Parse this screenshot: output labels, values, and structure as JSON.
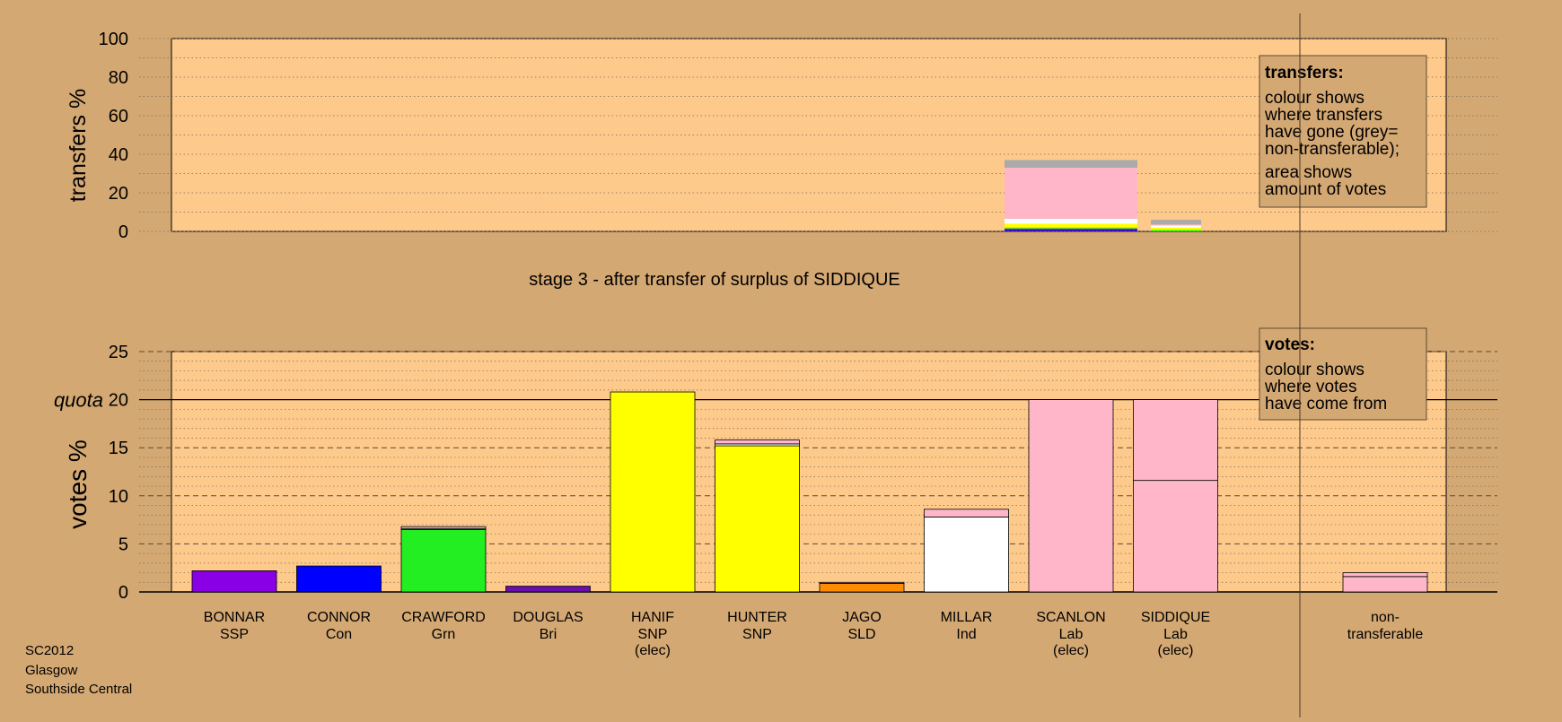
{
  "chart_data": [
    {
      "type": "bar",
      "subtype": "stacked",
      "ylabel": "transfers %",
      "ylim": [
        0,
        100
      ],
      "yticks": [
        0,
        20,
        40,
        60,
        80,
        100
      ],
      "columns": [
        {
          "label": "SCANLON",
          "relative_width": "wide",
          "segments": [
            {
              "source": "Bri",
              "color": "#6a0dad",
              "value": 0.5
            },
            {
              "source": "Con",
              "color": "#0000ff",
              "value": 0.7
            },
            {
              "source": "Grn",
              "color": "#22ee22",
              "value": 0.5
            },
            {
              "source": "SLD",
              "color": "#ff8c00",
              "value": 0.3
            },
            {
              "source": "SNP",
              "color": "#ffff00",
              "value": 2.0
            },
            {
              "source": "Ind",
              "color": "#ffffff",
              "value": 2.5
            },
            {
              "source": "Lab",
              "color": "#ffb6c8",
              "value": 26.5
            },
            {
              "source": "non-transferable",
              "color": "#aaaaaa",
              "value": 4.0
            }
          ]
        },
        {
          "label": "SIDDIQUE",
          "relative_width": "narrow",
          "segments": [
            {
              "source": "Grn",
              "color": "#22ee22",
              "value": 0.7
            },
            {
              "source": "SNP",
              "color": "#ffff00",
              "value": 1.3
            },
            {
              "source": "Ind",
              "color": "#ffffff",
              "value": 1.0
            },
            {
              "source": "Lab",
              "color": "#ffb6c8",
              "value": 0.6
            },
            {
              "source": "non-transferable",
              "color": "#aaaaaa",
              "value": 2.4
            }
          ]
        }
      ],
      "legend": {
        "title": "transfers:",
        "para1": [
          "colour shows",
          "where transfers",
          "have gone (grey=",
          "non-transferable);"
        ],
        "para2": [
          "area shows",
          "amount of votes"
        ]
      }
    },
    {
      "type": "bar",
      "subtype": "stacked",
      "title": "stage 3 - after transfer of surplus of SIDDIQUE",
      "ylabel": "votes %",
      "ylim": [
        0,
        25
      ],
      "yticks": [
        0,
        5,
        10,
        15,
        20,
        25
      ],
      "quota": 20,
      "quota_label": "quota",
      "candidates": [
        {
          "name": "BONNAR",
          "party": "SSP",
          "elected": "",
          "segments": [
            {
              "color": "#8a00e6",
              "value": 2.2
            }
          ]
        },
        {
          "name": "CONNOR",
          "party": "Con",
          "elected": "",
          "segments": [
            {
              "color": "#0000ff",
              "value": 2.7
            }
          ]
        },
        {
          "name": "CRAWFORD",
          "party": "Grn",
          "elected": "",
          "segments": [
            {
              "color": "#22ee22",
              "value": 6.5
            },
            {
              "color": "#ffffff",
              "value": 0.1
            },
            {
              "color": "#ffb6c8",
              "value": 0.2
            }
          ]
        },
        {
          "name": "DOUGLAS",
          "party": "Bri",
          "elected": "",
          "segments": [
            {
              "color": "#6a0dad",
              "value": 0.6
            }
          ]
        },
        {
          "name": "HANIF",
          "party": "SNP",
          "elected": "(elec)",
          "segments": [
            {
              "color": "#ffff00",
              "value": 20.8
            }
          ]
        },
        {
          "name": "HUNTER",
          "party": "SNP",
          "elected": "",
          "segments": [
            {
              "color": "#ffff00",
              "value": 15.2
            },
            {
              "color": "#ffffff",
              "value": 0.2
            },
            {
              "color": "#ffb6c8",
              "value": 0.4
            }
          ]
        },
        {
          "name": "JAGO",
          "party": "SLD",
          "elected": "",
          "segments": [
            {
              "color": "#ff8c00",
              "value": 0.9
            },
            {
              "color": "#ffb6c8",
              "value": 0.1
            }
          ]
        },
        {
          "name": "MILLAR",
          "party": "Ind",
          "elected": "",
          "segments": [
            {
              "color": "#ffffff",
              "value": 7.8
            },
            {
              "color": "#ffb6c8",
              "value": 0.8
            }
          ]
        },
        {
          "name": "SCANLON",
          "party": "Lab",
          "elected": "(elec)",
          "segments": [
            {
              "color": "#ffb6c8",
              "value": 20.0
            }
          ]
        },
        {
          "name": "SIDDIQUE",
          "party": "Lab",
          "elected": "(elec)",
          "segments": [
            {
              "color": "#ffb6c8",
              "value": 11.6
            },
            {
              "color": "#ffb6c8",
              "value": 8.4
            }
          ]
        }
      ],
      "nontransferable": {
        "line1": "non-",
        "line2": "transferable",
        "segments": [
          {
            "color": "#ffb6c8",
            "value": 1.6
          },
          {
            "color": "#ffb6c8",
            "value": 0.4
          }
        ]
      },
      "legend": {
        "title": "votes:",
        "para1": [
          "colour shows",
          "where votes",
          "have come from"
        ]
      }
    }
  ],
  "footer": {
    "line1": "SC2012",
    "line2": "Glasgow",
    "line3": "Southside Central"
  },
  "colors": {
    "background": "#d4a873",
    "plot_area": "#fdca8c",
    "legend_box": "#d4a873",
    "axis": "#000000"
  }
}
